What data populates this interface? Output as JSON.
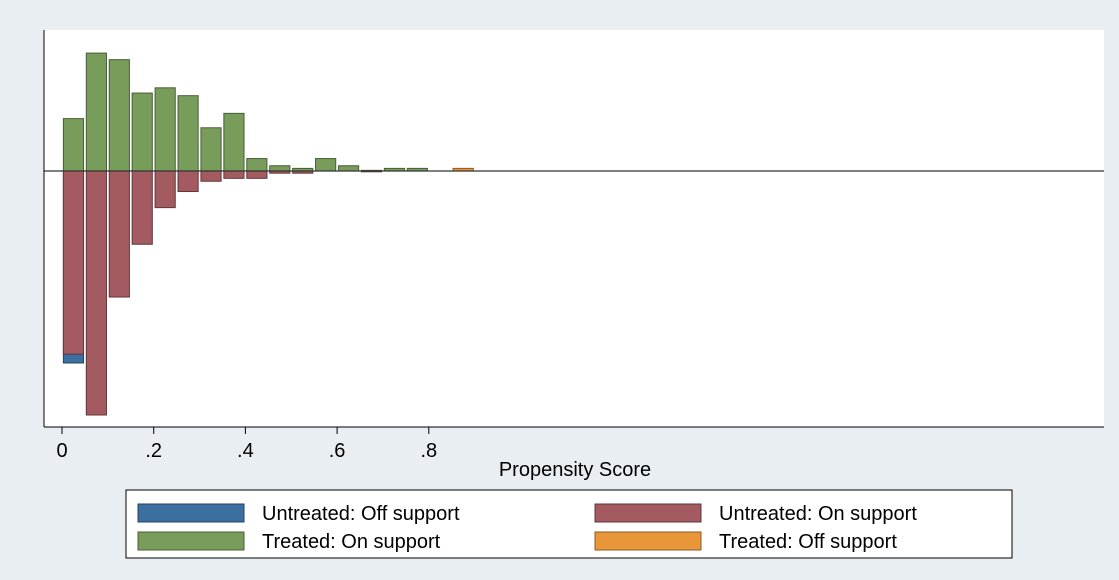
{
  "chart_data": {
    "type": "bar",
    "title": "",
    "xlabel": "Propensity Score",
    "ylabel": "",
    "xlim": [
      -0.02,
      0.91
    ],
    "ylim": [
      -0.34,
      0.2
    ],
    "x_ticks": [
      0,
      0.2,
      0.4,
      0.6,
      0.8
    ],
    "x_tick_labels": [
      "0",
      ".2",
      ".4",
      ".6",
      ".8"
    ],
    "bin_width": 0.05,
    "grid": false,
    "legend_position": "bottom",
    "series": [
      {
        "name": "Untreated: Off support",
        "color": "#3b6fa0",
        "direction": "down",
        "bins": [
          0.025
        ],
        "values": [
          0.262
        ]
      },
      {
        "name": "Untreated: On support",
        "color": "#a45a61",
        "direction": "down",
        "bins": [
          0.025,
          0.075,
          0.125,
          0.175,
          0.225,
          0.275,
          0.325,
          0.375,
          0.425,
          0.475,
          0.525,
          0.675
        ],
        "values": [
          0.25,
          0.333,
          0.172,
          0.1,
          0.05,
          0.028,
          0.014,
          0.01,
          0.01,
          0.003,
          0.003,
          0.001
        ]
      },
      {
        "name": "Treated: On support",
        "color": "#789c5a",
        "direction": "up",
        "bins": [
          0.025,
          0.075,
          0.125,
          0.175,
          0.225,
          0.275,
          0.325,
          0.375,
          0.425,
          0.475,
          0.525,
          0.575,
          0.625,
          0.675,
          0.725,
          0.775
        ],
        "values": [
          0.08,
          0.18,
          0.17,
          0.119,
          0.127,
          0.115,
          0.066,
          0.088,
          0.019,
          0.008,
          0.004,
          0.019,
          0.008,
          0.001,
          0.004,
          0.004
        ]
      },
      {
        "name": "Treated: Off support",
        "color": "#e8963a",
        "direction": "up",
        "bins": [
          0.875
        ],
        "values": [
          0.004
        ]
      }
    ]
  }
}
